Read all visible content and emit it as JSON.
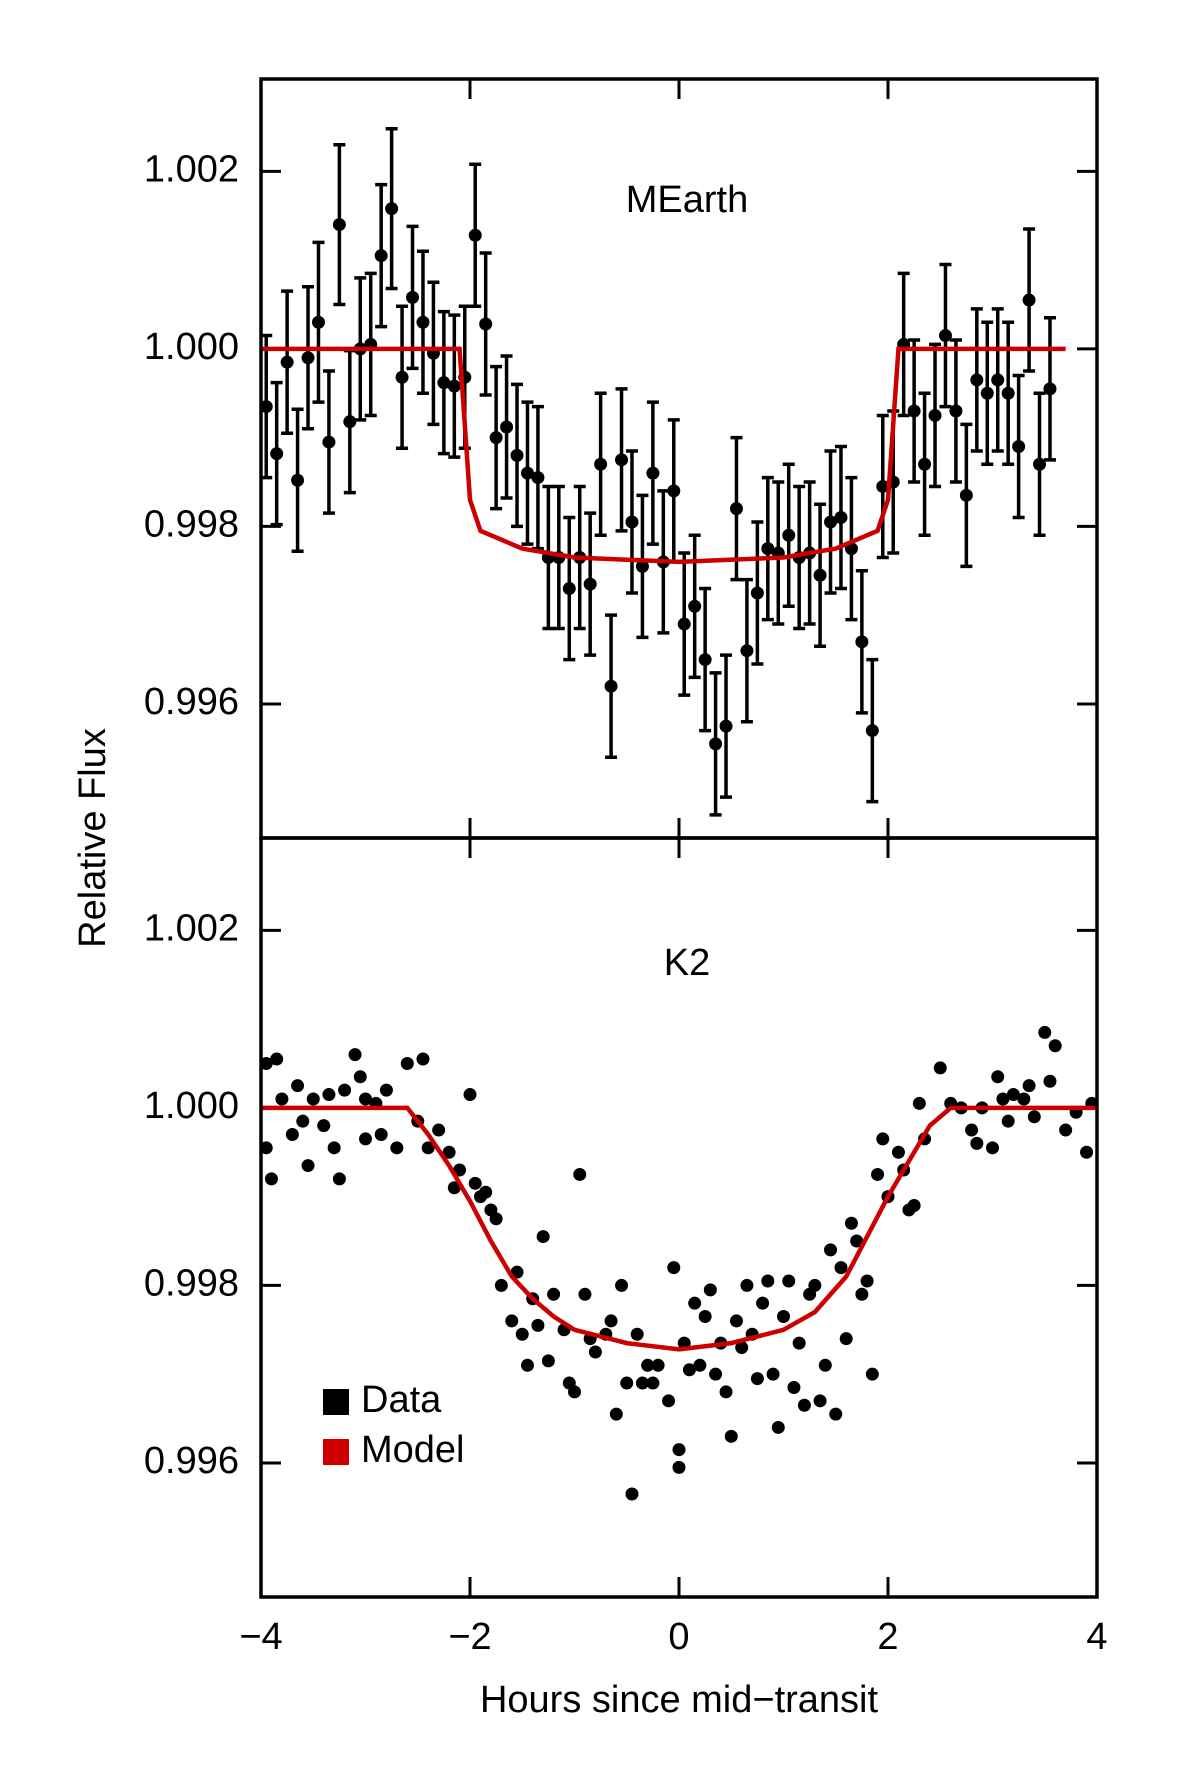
{
  "chart_data": [
    {
      "type": "errorbar",
      "annotation": "MEarth",
      "ylabel": "Relative Flux",
      "xlim": [
        -4,
        4
      ],
      "xticks": [
        -4,
        -2,
        0,
        2,
        4
      ],
      "ylim": [
        0.99449,
        1.00304
      ],
      "yticks": [
        0.996,
        0.998,
        {
          "value": 1.0,
          "label": "1.000"
        },
        1.002
      ],
      "series": [
        {
          "kind": "points",
          "color": "#000000",
          "x": [
            -3.95,
            -3.85,
            -3.75,
            -3.65,
            -3.55,
            -3.45,
            -3.35,
            -3.25,
            -3.15,
            -3.05,
            -2.95,
            -2.85,
            -2.75,
            -2.65,
            -2.55,
            -2.45,
            -2.35,
            -2.25,
            -2.15,
            -2.05,
            -1.95,
            -1.85,
            -1.75,
            -1.65,
            -1.55,
            -1.45,
            -1.35,
            -1.25,
            -1.15,
            -1.05,
            -0.95,
            -0.85,
            -0.75,
            -0.65,
            -0.55,
            -0.45,
            -0.35,
            -0.25,
            -0.15,
            -0.05,
            0.05,
            0.15,
            0.25,
            0.35,
            0.45,
            0.55,
            0.65,
            0.75,
            0.85,
            0.95,
            1.05,
            1.15,
            1.25,
            1.35,
            1.45,
            1.55,
            1.65,
            1.75,
            1.85,
            1.95,
            2.05,
            2.15,
            2.25,
            2.35,
            2.45,
            2.55,
            2.65,
            2.75,
            2.85,
            2.95,
            3.05,
            3.15,
            3.25,
            3.35,
            3.45,
            3.55
          ],
          "values": [
            0.99935,
            0.99882,
            0.99985,
            0.99852,
            0.9999,
            1.0003,
            0.99895,
            1.0014,
            0.99918,
            1.0,
            1.00005,
            1.00105,
            1.00158,
            0.99968,
            1.00058,
            1.0003,
            0.99995,
            0.99962,
            0.99958,
            0.99968,
            1.00128,
            1.00028,
            0.999,
            0.99912,
            0.9988,
            0.9986,
            0.99855,
            0.99765,
            0.99765,
            0.9973,
            0.99765,
            0.99735,
            0.9987,
            0.9962,
            0.99875,
            0.99805,
            0.99755,
            0.9986,
            0.9976,
            0.9984,
            0.9969,
            0.9971,
            0.9965,
            0.99555,
            0.99575,
            0.9982,
            0.9966,
            0.99725,
            0.99775,
            0.9977,
            0.9979,
            0.99765,
            0.9977,
            0.99745,
            0.99805,
            0.9981,
            0.99775,
            0.9967,
            0.9957,
            0.99845,
            0.9985,
            1.00005,
            0.9993,
            0.9987,
            0.99925,
            1.00015,
            0.9993,
            0.99835,
            0.99965,
            0.9995,
            0.99965,
            0.9995,
            0.9989,
            1.00055,
            0.9987,
            0.99955
          ],
          "errors": [
            0.0008,
            0.0008,
            0.0008,
            0.0008,
            0.0008,
            0.0009,
            0.0008,
            0.0009,
            0.0008,
            0.0008,
            0.0008,
            0.0008,
            0.0009,
            0.0008,
            0.0008,
            0.0008,
            0.0008,
            0.0008,
            0.0008,
            0.0008,
            0.0008,
            0.0008,
            0.0008,
            0.0008,
            0.0008,
            0.0008,
            0.0008,
            0.0008,
            0.0008,
            0.0008,
            0.0008,
            0.0008,
            0.0008,
            0.0008,
            0.0008,
            0.0008,
            0.0008,
            0.0008,
            0.0008,
            0.0008,
            0.0008,
            0.0008,
            0.0008,
            0.0008,
            0.0008,
            0.0008,
            0.0008,
            0.0008,
            0.0008,
            0.0008,
            0.0008,
            0.0008,
            0.0008,
            0.0008,
            0.0008,
            0.0008,
            0.0008,
            0.0008,
            0.0008,
            0.0008,
            0.0008,
            0.0008,
            0.0008,
            0.0008,
            0.0008,
            0.0008,
            0.0008,
            0.0008,
            0.0008,
            0.0008,
            0.0008,
            0.0008,
            0.0008,
            0.0008,
            0.0008,
            0.0008
          ]
        },
        {
          "kind": "line",
          "color": "#cc0000",
          "x": [
            -4,
            -2.1,
            -2.0,
            -1.9,
            -1.5,
            -1,
            0,
            1,
            1.5,
            1.9,
            2.0,
            2.1,
            3.7
          ],
          "values": [
            1.0,
            1.0,
            0.9983,
            0.99795,
            0.99775,
            0.99765,
            0.9976,
            0.99765,
            0.99775,
            0.99795,
            0.9983,
            1.0,
            1.0
          ]
        }
      ]
    },
    {
      "type": "scatter",
      "annotation": "K2",
      "xlabel": "Hours since mid−transit",
      "xlim": [
        -4,
        4
      ],
      "xticks": [
        {
          "value": -4,
          "label": "−4"
        },
        {
          "value": -2,
          "label": "−2"
        },
        0,
        2,
        4
      ],
      "ylim": [
        0.99449,
        1.00304
      ],
      "yticks": [
        0.996,
        0.998,
        {
          "value": 1.0,
          "label": "1.000"
        },
        1.002
      ],
      "legend": "lower left",
      "series": [
        {
          "name": "Data",
          "kind": "points",
          "color": "#000000",
          "x": [
            -3.95,
            -3.95,
            -3.9,
            -3.85,
            -3.8,
            -3.7,
            -3.65,
            -3.6,
            -3.55,
            -3.5,
            -3.4,
            -3.35,
            -3.3,
            -3.25,
            -3.2,
            -3.1,
            -3.05,
            -3.0,
            -3.0,
            -2.9,
            -2.85,
            -2.8,
            -2.7,
            -2.6,
            -2.5,
            -2.45,
            -2.4,
            -2.3,
            -2.2,
            -2.15,
            -2.1,
            -2.0,
            -1.95,
            -1.9,
            -1.85,
            -1.8,
            -1.75,
            -1.7,
            -1.6,
            -1.55,
            -1.5,
            -1.45,
            -1.4,
            -1.35,
            -1.3,
            -1.25,
            -1.2,
            -1.1,
            -1.05,
            -1.0,
            -0.95,
            -0.9,
            -0.85,
            -0.8,
            -0.7,
            -0.65,
            -0.6,
            -0.55,
            -0.5,
            -0.45,
            -0.4,
            -0.35,
            -0.3,
            -0.25,
            -0.2,
            -0.1,
            -0.05,
            0,
            0,
            0.05,
            0.1,
            0.15,
            0.2,
            0.25,
            0.3,
            0.35,
            0.4,
            0.45,
            0.5,
            0.55,
            0.6,
            0.65,
            0.7,
            0.75,
            0.8,
            0.85,
            0.9,
            0.95,
            1.0,
            1.05,
            1.1,
            1.15,
            1.2,
            1.25,
            1.3,
            1.35,
            1.4,
            1.45,
            1.5,
            1.55,
            1.6,
            1.65,
            1.7,
            1.75,
            1.8,
            1.85,
            1.9,
            1.95,
            2.0,
            2.1,
            2.15,
            2.2,
            2.25,
            2.3,
            2.35,
            2.5,
            2.6,
            2.7,
            2.8,
            2.85,
            2.9,
            3.0,
            3.05,
            3.1,
            3.15,
            3.2,
            3.3,
            3.35,
            3.4,
            3.5,
            3.55,
            3.6,
            3.7,
            3.8,
            3.9,
            3.95
          ],
          "values": [
            1.0005,
            0.99955,
            0.9992,
            1.00055,
            1.0001,
            0.9997,
            1.00025,
            0.99985,
            0.99935,
            1.0001,
            0.9998,
            1.00015,
            0.99955,
            0.9992,
            1.0002,
            1.0006,
            1.00035,
            0.99965,
            1.0001,
            1.00005,
            0.9997,
            1.0002,
            0.99955,
            1.0005,
            0.99985,
            1.00055,
            0.99955,
            0.99975,
            0.9995,
            0.9991,
            0.9993,
            1.00015,
            0.99915,
            0.999,
            0.99905,
            0.99885,
            0.99875,
            0.998,
            0.9976,
            0.99815,
            0.99745,
            0.9971,
            0.99785,
            0.99755,
            0.99855,
            0.99715,
            0.9979,
            0.9975,
            0.9969,
            0.9968,
            0.99925,
            0.9979,
            0.9974,
            0.99725,
            0.99745,
            0.9976,
            0.99655,
            0.998,
            0.9969,
            0.99565,
            0.99745,
            0.9969,
            0.9971,
            0.9969,
            0.9971,
            0.9967,
            0.9982,
            0.99615,
            0.99595,
            0.99735,
            0.99705,
            0.9978,
            0.9971,
            0.99765,
            0.99795,
            0.997,
            0.99735,
            0.9968,
            0.9963,
            0.9976,
            0.9973,
            0.998,
            0.99745,
            0.99695,
            0.9978,
            0.99805,
            0.997,
            0.9964,
            0.99765,
            0.99805,
            0.99685,
            0.99735,
            0.99665,
            0.9979,
            0.998,
            0.9967,
            0.9971,
            0.9984,
            0.99655,
            0.9982,
            0.9974,
            0.9987,
            0.9985,
            0.9979,
            0.99805,
            0.997,
            0.99925,
            0.99965,
            0.999,
            0.9995,
            0.9993,
            0.99885,
            0.9989,
            1.00005,
            0.99965,
            1.00045,
            1.00005,
            1.0,
            0.99975,
            0.9996,
            1.0,
            0.99955,
            1.00035,
            1.0001,
            0.99985,
            1.00015,
            1.0001,
            1.00025,
            0.9999,
            1.00085,
            1.0003,
            1.0007,
            0.99975,
            0.99995,
            0.9995,
            1.00005
          ]
        },
        {
          "name": "Model",
          "kind": "line",
          "color": "#cc0000",
          "x": [
            -4,
            -2.6,
            -2.4,
            -2.2,
            -2.0,
            -1.8,
            -1.6,
            -1.4,
            -1.2,
            -1,
            -0.5,
            0,
            0.5,
            1,
            1.3,
            1.6,
            1.8,
            2.0,
            2.2,
            2.4,
            2.6,
            4
          ],
          "values": [
            1.0,
            1.0,
            0.9997,
            0.99935,
            0.99895,
            0.9985,
            0.9981,
            0.99785,
            0.99765,
            0.9975,
            0.99735,
            0.99728,
            0.99735,
            0.9975,
            0.9977,
            0.9981,
            0.99855,
            0.999,
            0.9994,
            0.9998,
            1.0,
            1.0
          ]
        }
      ]
    }
  ]
}
